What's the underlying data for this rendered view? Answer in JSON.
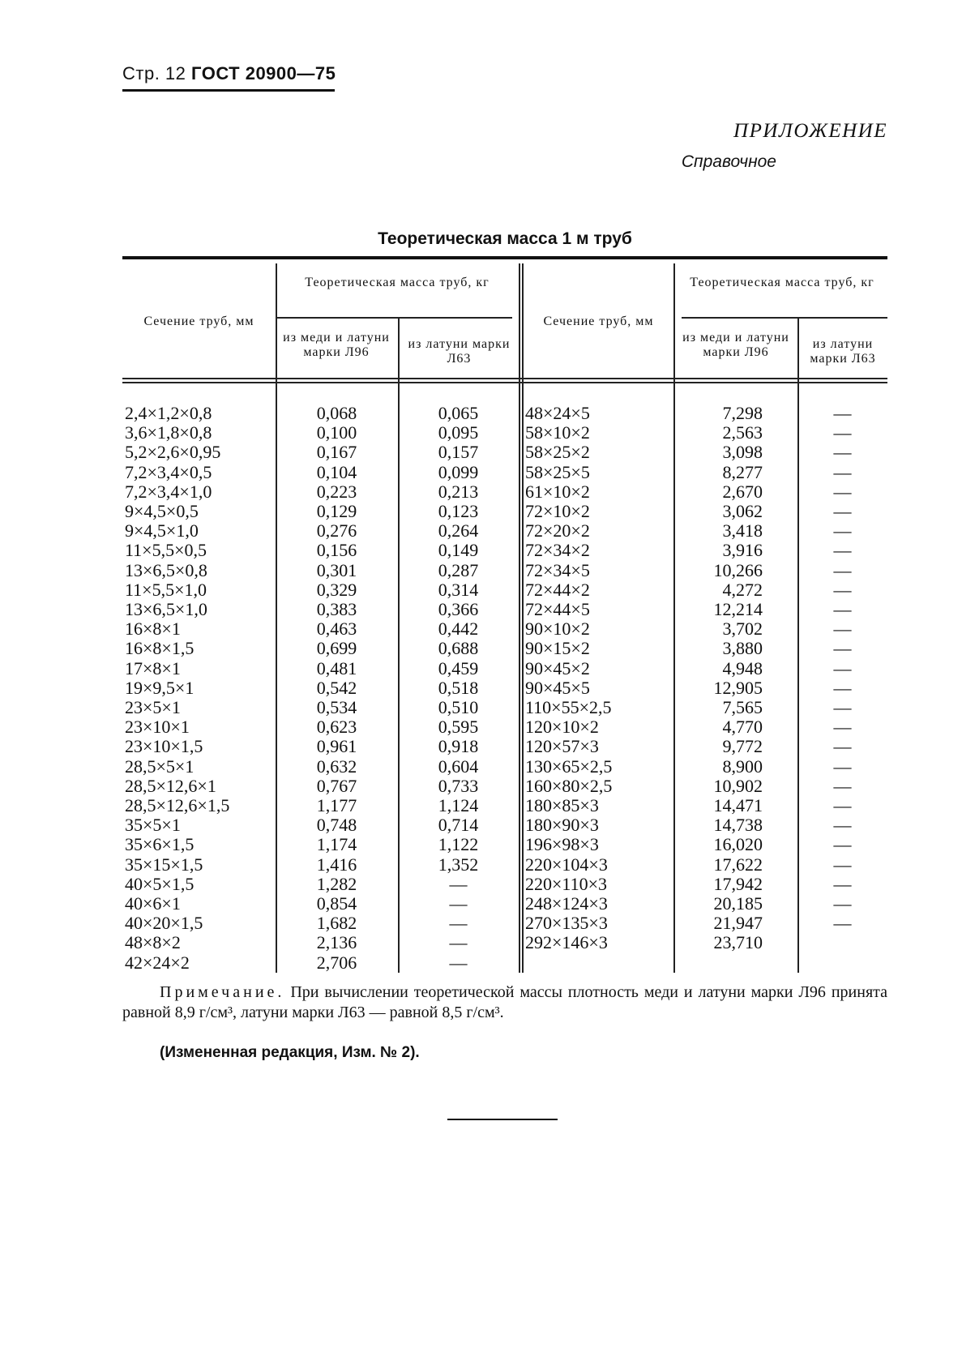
{
  "header": {
    "page": "Стр. 12",
    "standard": "ГОСТ 20900—75"
  },
  "appendix": {
    "title": "ПРИЛОЖЕНИЕ",
    "subtitle": "Справочное"
  },
  "table": {
    "title": "Теоретическая масса 1 м труб",
    "headers": {
      "section": "Сечение труб, мм",
      "mass_group": "Теоретическая масса труб, кг",
      "copper": "из меди и латуни марки Л96",
      "brass": "из латуни марки Л63"
    },
    "left_rows": [
      [
        "2,4×1,2×0,8",
        "0,068",
        "0,065"
      ],
      [
        "3,6×1,8×0,8",
        "0,100",
        "0,095"
      ],
      [
        "5,2×2,6×0,95",
        "0,167",
        "0,157"
      ],
      [
        "7,2×3,4×0,5",
        "0,104",
        "0,099"
      ],
      [
        "7,2×3,4×1,0",
        "0,223",
        "0,213"
      ],
      [
        "9×4,5×0,5",
        "0,129",
        "0,123"
      ],
      [
        "9×4,5×1,0",
        "0,276",
        "0,264"
      ],
      [
        "11×5,5×0,5",
        "0,156",
        "0,149"
      ],
      [
        "13×6,5×0,8",
        "0,301",
        "0,287"
      ],
      [
        "11×5,5×1,0",
        "0,329",
        "0,314"
      ],
      [
        "13×6,5×1,0",
        "0,383",
        "0,366"
      ],
      [
        "16×8×1",
        "0,463",
        "0,442"
      ],
      [
        "16×8×1,5",
        "0,699",
        "0,688"
      ],
      [
        "17×8×1",
        "0,481",
        "0,459"
      ],
      [
        "19×9,5×1",
        "0,542",
        "0,518"
      ],
      [
        "23×5×1",
        "0,534",
        "0,510"
      ],
      [
        "23×10×1",
        "0,623",
        "0,595"
      ],
      [
        "23×10×1,5",
        "0,961",
        "0,918"
      ],
      [
        "28,5×5×1",
        "0,632",
        "0,604"
      ],
      [
        "28,5×12,6×1",
        "0,767",
        "0,733"
      ],
      [
        "28,5×12,6×1,5",
        "1,177",
        "1,124"
      ],
      [
        "35×5×1",
        "0,748",
        "0,714"
      ],
      [
        "35×6×1,5",
        "1,174",
        "1,122"
      ],
      [
        "35×15×1,5",
        "1,416",
        "1,352"
      ],
      [
        "40×5×1,5",
        "1,282",
        "—"
      ],
      [
        "40×6×1",
        "0,854",
        "—"
      ],
      [
        "40×20×1,5",
        "1,682",
        "—"
      ],
      [
        "48×8×2",
        "2,136",
        "—"
      ],
      [
        "42×24×2",
        "2,706",
        "—"
      ]
    ],
    "right_rows": [
      [
        "48×24×5",
        "7,298",
        "—"
      ],
      [
        "58×10×2",
        "2,563",
        "—"
      ],
      [
        "58×25×2",
        "3,098",
        "—"
      ],
      [
        "58×25×5",
        "8,277",
        "—"
      ],
      [
        "61×10×2",
        "2,670",
        "—"
      ],
      [
        "72×10×2",
        "3,062",
        "—"
      ],
      [
        "72×20×2",
        "3,418",
        "—"
      ],
      [
        "72×34×2",
        "3,916",
        "—"
      ],
      [
        "72×34×5",
        "10,266",
        "—"
      ],
      [
        "72×44×2",
        "4,272",
        "—"
      ],
      [
        "72×44×5",
        "12,214",
        "—"
      ],
      [
        "90×10×2",
        "3,702",
        "—"
      ],
      [
        "90×15×2",
        "3,880",
        "—"
      ],
      [
        "90×45×2",
        "4,948",
        "—"
      ],
      [
        "90×45×5",
        "12,905",
        "—"
      ],
      [
        "110×55×2,5",
        "7,565",
        "—"
      ],
      [
        "120×10×2",
        "4,770",
        "—"
      ],
      [
        "120×57×3",
        "9,772",
        "—"
      ],
      [
        "130×65×2,5",
        "8,900",
        "—"
      ],
      [
        "160×80×2,5",
        "10,902",
        "—"
      ],
      [
        "180×85×3",
        "14,471",
        "—"
      ],
      [
        "180×90×3",
        "14,738",
        "—"
      ],
      [
        "196×98×3",
        "16,020",
        "—"
      ],
      [
        "220×104×3",
        "17,622",
        "—"
      ],
      [
        "220×110×3",
        "17,942",
        "—"
      ],
      [
        "248×124×3",
        "20,185",
        "—"
      ],
      [
        "270×135×3",
        "21,947",
        "—"
      ],
      [
        "292×146×3",
        "23,710",
        ""
      ]
    ]
  },
  "note": {
    "label": "Примечание.",
    "text": "При вычислении теоретической массы плотность меди и латуни марки Л96 принята равной 8,9 г/см³, латуни марки Л63 — равной 8,5 г/см³."
  },
  "edition": "(Измененная редакция, Изм. № 2)."
}
